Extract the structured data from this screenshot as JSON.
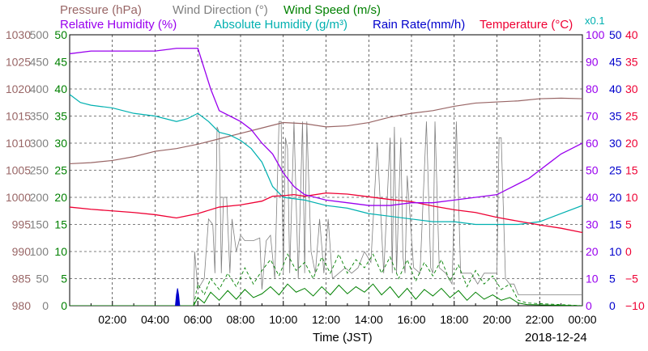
{
  "chart_data": {
    "type": "line",
    "date": "2018-12-24",
    "xlabel": "Time (JST)",
    "x_ticks": [
      "02:00",
      "04:00",
      "06:00",
      "08:00",
      "10:00",
      "12:00",
      "14:00",
      "16:00",
      "18:00",
      "20:00",
      "22:00",
      "00:00"
    ],
    "grid": true,
    "legend_row1": [
      {
        "label": "Pressure (hPa)",
        "color": "#996666"
      },
      {
        "label": "Wind Direction (°)",
        "color": "#808080"
      },
      {
        "label": "Wind Speed (m/s)",
        "color": "#008000"
      }
    ],
    "legend_row2": [
      {
        "label": "Relative Humidity (%)",
        "color": "#9900ee"
      },
      {
        "label": "Absolute Humidity (g/m³)",
        "color": "#00b0b0"
      },
      {
        "label": "Rain Rate(mm/h)",
        "color": "#0000cc"
      },
      {
        "label": "Temperature (°C)",
        "color": "#ee0033"
      },
      {
        "label": "x0.1",
        "color": "#00b0b0"
      }
    ],
    "axes": {
      "pressure": {
        "label": "Pressure (hPa)",
        "ticks": [
          "1030",
          "1025",
          "1020",
          "1015",
          "1010",
          "1005",
          "1000",
          "995",
          "990",
          "985",
          "980"
        ],
        "range": [
          980,
          1030
        ],
        "color": "#996666"
      },
      "wind_direction": {
        "label": "Wind Direction (°)",
        "ticks": [
          "500",
          "450",
          "400",
          "350",
          "300",
          "250",
          "200",
          "150",
          "100",
          "50",
          "0"
        ],
        "range": [
          0,
          500
        ],
        "color": "#808080"
      },
      "wind_speed": {
        "label": "Wind Speed (m/s)",
        "ticks": [
          "50",
          "45",
          "40",
          "35",
          "30",
          "25",
          "20",
          "15",
          "10",
          "5",
          "0"
        ],
        "range": [
          0,
          50
        ],
        "color": "#008000"
      },
      "relative_humidity": {
        "label": "Relative Humidity (%)",
        "ticks": [
          "100",
          "90",
          "80",
          "70",
          "60",
          "50",
          "40",
          "30",
          "20",
          "10",
          "0"
        ],
        "range": [
          0,
          100
        ],
        "color": "#9900ee"
      },
      "rain_rate": {
        "label": "Rain Rate(mm/h)",
        "ticks": [
          "50",
          "45",
          "40",
          "35",
          "30",
          "25",
          "20",
          "15",
          "10",
          "5",
          "0"
        ],
        "range": [
          0,
          50
        ],
        "color": "#0000cc"
      },
      "temperature": {
        "label": "Temperature (°C)",
        "ticks": [
          "40",
          "35",
          "30",
          "25",
          "20",
          "15",
          "10",
          "5",
          "0",
          "−5",
          "−10"
        ],
        "range": [
          -10,
          40
        ],
        "color": "#ee0033"
      }
    },
    "series": [
      {
        "name": "Relative Humidity (%)",
        "axis": "relative_humidity",
        "color": "#9900ee",
        "x": [
          0,
          1,
          2,
          3,
          4,
          5,
          5.5,
          5.8,
          6.0,
          6.2,
          6.6,
          7.0,
          7.5,
          8.0,
          8.5,
          9.0,
          9.5,
          10.0,
          10.5,
          11.0,
          12.0,
          13.0,
          14.0,
          15.0,
          16.0,
          17.0,
          18.0,
          19.0,
          20.0,
          20.5,
          21.0,
          21.5,
          22.0,
          22.5,
          23.0,
          23.5,
          24.0
        ],
        "y": [
          93,
          94,
          94,
          94,
          94,
          95,
          95,
          95,
          95,
          90,
          80,
          72,
          70,
          68,
          65,
          60,
          56,
          49,
          44,
          41,
          39,
          38,
          37,
          37,
          38,
          38,
          39,
          40,
          41,
          43,
          45,
          47,
          50,
          53,
          56,
          58,
          60
        ]
      },
      {
        "name": "Absolute Humidity (g/m³)",
        "axis": "relative_humidity",
        "color": "#00b0b0",
        "x": [
          0,
          0.5,
          1,
          2,
          3,
          4,
          5,
          5.5,
          6.0,
          6.5,
          7.0,
          7.5,
          8.0,
          8.5,
          9.0,
          9.5,
          10.0,
          11.0,
          12.0,
          13.0,
          14.0,
          15.0,
          16.0,
          17.0,
          18.0,
          19.0,
          20.0,
          21.0,
          22.0,
          23.0,
          24.0
        ],
        "y": [
          78,
          75,
          74,
          73,
          71,
          70,
          68,
          69,
          71,
          68,
          64,
          63,
          61,
          58,
          53,
          44,
          40,
          39,
          37,
          36,
          34,
          33,
          32,
          31,
          31,
          30,
          30,
          30,
          31,
          34,
          37
        ]
      },
      {
        "name": "Rain Rate(mm/h)",
        "axis": "rain_rate",
        "color": "#0000cc",
        "x": [
          4.95,
          5.0,
          5.05,
          5.1,
          5.15
        ],
        "y": [
          0,
          2,
          3.2,
          2,
          0
        ]
      },
      {
        "name": "Temperature (°C)",
        "axis": "temperature",
        "color": "#ee0033",
        "x": [
          0,
          1,
          2,
          3,
          4,
          5,
          6,
          7,
          8,
          9,
          9.5,
          10,
          10.5,
          11,
          12,
          13,
          14,
          15,
          16,
          17,
          18,
          19,
          20,
          21,
          22,
          23,
          24
        ],
        "y": [
          8.2,
          7.8,
          7.5,
          7.2,
          6.8,
          6.2,
          7.0,
          8.2,
          8.6,
          9.3,
          10.2,
          10.3,
          10.5,
          10.2,
          10.8,
          10.6,
          10.1,
          9.6,
          9.2,
          8.4,
          7.7,
          7.2,
          6.3,
          5.6,
          4.9,
          4.3,
          3.5
        ]
      },
      {
        "name": "Pressure (hPa)",
        "axis": "pressure",
        "color": "#996666",
        "x": [
          0,
          1,
          2,
          3,
          4,
          5,
          6,
          7,
          8,
          9,
          10,
          11,
          12,
          13,
          14,
          15,
          16,
          17,
          18,
          19,
          20,
          21,
          22,
          23,
          24
        ],
        "y": [
          1006.2,
          1006.4,
          1006.8,
          1007.5,
          1008.5,
          1009.0,
          1009.8,
          1010.8,
          1011.8,
          1012.8,
          1013.8,
          1013.6,
          1013.0,
          1013.2,
          1013.8,
          1014.8,
          1015.5,
          1016.0,
          1016.8,
          1017.4,
          1017.6,
          1017.8,
          1018.2,
          1018.3,
          1018.2
        ]
      }
    ],
    "wind_direction_series": {
      "name": "Wind Direction (°)",
      "axis": "wind_direction",
      "color": "#808080",
      "x": [
        0,
        5.8,
        5.85,
        6.0,
        6.3,
        6.5,
        6.7,
        6.8,
        6.9,
        7.0,
        7.1,
        7.2,
        7.35,
        7.5,
        7.6,
        7.8,
        8.0,
        8.2,
        8.4,
        8.6,
        8.9,
        9.0,
        9.2,
        9.4,
        9.6,
        9.8,
        9.9,
        10.0,
        10.1,
        10.2,
        10.3,
        10.5,
        10.7,
        10.9,
        11.0,
        11.1,
        11.3,
        11.5,
        11.7,
        11.9,
        12.1,
        12.3,
        12.6,
        12.9,
        13.2,
        13.5,
        13.8,
        14.1,
        14.4,
        14.7,
        15.0,
        15.1,
        15.2,
        15.3,
        15.5,
        15.6,
        15.7,
        15.8,
        16.1,
        16.4,
        16.7,
        16.9,
        17.0,
        17.1,
        17.3,
        17.6,
        17.9,
        18.1,
        18.3,
        18.5,
        18.8,
        19.1,
        19.4,
        19.7,
        20.0,
        20.1,
        20.2,
        20.4,
        20.6,
        20.7,
        20.8,
        21.0,
        21.2,
        21.5,
        24.0
      ],
      "y": [
        0,
        0,
        100,
        30,
        50,
        160,
        150,
        60,
        330,
        320,
        60,
        200,
        200,
        60,
        160,
        100,
        130,
        120,
        120,
        120,
        125,
        30,
        120,
        130,
        50,
        340,
        340,
        60,
        310,
        290,
        60,
        340,
        50,
        340,
        60,
        340,
        100,
        60,
        160,
        60,
        160,
        50,
        60,
        70,
        60,
        70,
        100,
        80,
        300,
        60,
        310,
        60,
        330,
        60,
        310,
        90,
        60,
        240,
        70,
        60,
        340,
        70,
        60,
        340,
        70,
        60,
        40,
        340,
        60,
        60,
        60,
        40,
        60,
        60,
        60,
        310,
        310,
        50,
        40,
        40,
        40,
        20,
        20,
        20,
        20
      ]
    },
    "wind_speed_solid": {
      "name": "Wind Speed (m/s)",
      "axis": "wind_speed",
      "color": "#008000",
      "x": [
        0,
        5.8,
        6.0,
        6.3,
        6.6,
        7.0,
        7.4,
        7.8,
        8.2,
        8.6,
        9.0,
        9.4,
        9.8,
        10.2,
        10.6,
        11.0,
        11.4,
        11.8,
        12.2,
        12.6,
        13.0,
        13.4,
        13.8,
        14.2,
        14.6,
        15.0,
        15.4,
        15.8,
        16.2,
        16.6,
        17.0,
        17.4,
        17.8,
        18.2,
        18.6,
        19.0,
        19.4,
        19.8,
        20.2,
        20.6,
        21.0,
        21.4,
        24.0
      ],
      "y": [
        0,
        0,
        1.5,
        0.5,
        2.5,
        1.0,
        2.8,
        1.2,
        3.0,
        1.5,
        2.2,
        3.5,
        2.0,
        4.0,
        2.5,
        3.2,
        1.8,
        3.5,
        2.0,
        3.8,
        2.2,
        3.5,
        2.5,
        4.0,
        2.0,
        3.5,
        1.5,
        3.2,
        1.2,
        3.0,
        1.8,
        3.2,
        1.5,
        2.8,
        1.0,
        2.5,
        1.2,
        2.0,
        1.0,
        1.5,
        0.5,
        0.2,
        0
      ]
    },
    "wind_speed_gust": {
      "name": "Wind Speed (m/s)",
      "axis": "wind_speed",
      "color": "#008000",
      "x": [
        0,
        5.8,
        6.0,
        6.3,
        6.6,
        7.0,
        7.4,
        7.8,
        8.2,
        8.6,
        9.0,
        9.4,
        9.8,
        10.2,
        10.6,
        11.0,
        11.4,
        11.8,
        12.2,
        12.6,
        13.0,
        13.4,
        13.8,
        14.2,
        14.6,
        15.0,
        15.4,
        15.8,
        16.2,
        16.6,
        17.0,
        17.4,
        17.8,
        18.2,
        18.6,
        19.0,
        19.4,
        19.8,
        20.2,
        20.6,
        21.0,
        21.4,
        24.0
      ],
      "y": [
        0,
        0,
        4.0,
        2.0,
        5.0,
        3.0,
        6.0,
        3.5,
        7.0,
        4.0,
        6.5,
        8.5,
        5.5,
        9.5,
        6.5,
        8.0,
        5.0,
        9.0,
        6.0,
        9.5,
        6.0,
        8.5,
        7.0,
        9.5,
        6.0,
        9.0,
        5.0,
        8.5,
        4.5,
        8.0,
        5.5,
        8.5,
        4.5,
        7.5,
        3.5,
        6.5,
        4.0,
        5.5,
        3.0,
        4.0,
        1.0,
        0.5,
        0
      ]
    }
  }
}
